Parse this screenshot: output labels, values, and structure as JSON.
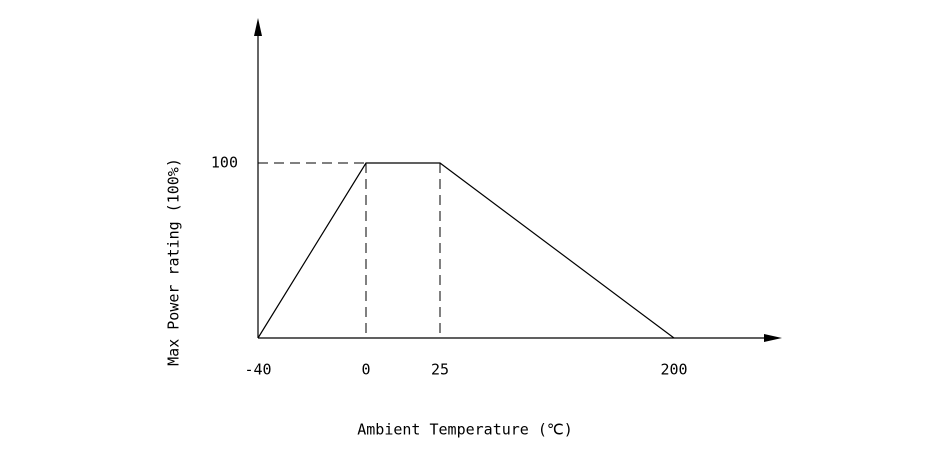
{
  "chart_data": {
    "type": "line",
    "x_label": "Ambient Temperature (℃)",
    "y_label": "Max Power rating (100%)",
    "categories": [
      "-40",
      "0",
      "25",
      "200"
    ],
    "values": [
      0,
      100,
      100,
      0
    ],
    "color": "#000000",
    "ylim": [
      0,
      180
    ],
    "yticks": [
      100
    ]
  }
}
